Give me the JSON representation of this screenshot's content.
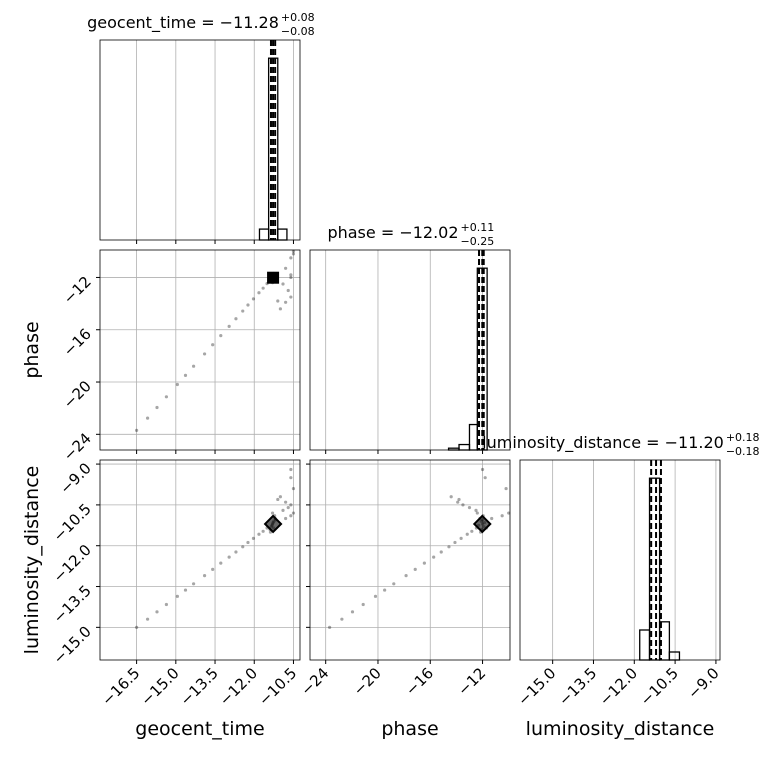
{
  "chart_data": {
    "type": "corner",
    "parameters": [
      {
        "label": "geocent_time",
        "title": "geocent_time = −11.28",
        "title_upper": "+0.08",
        "title_lower": "−0.08",
        "lim": [
          -17.9,
          -10.25
        ],
        "ticks": [
          {
            "value": -16.5,
            "label": "−16.5"
          },
          {
            "value": -15,
            "label": "−15.0"
          },
          {
            "value": -13.5,
            "label": "−13.5"
          },
          {
            "value": -12,
            "label": "−12.0"
          },
          {
            "value": -10.5,
            "label": "−10.5"
          }
        ],
        "bins": [
          -11.8,
          -11.45,
          -11.1,
          -10.75
        ],
        "counts": [
          0.06,
          1.0,
          0.06
        ],
        "hist_ylim": [
          0,
          1.1
        ],
        "quantiles": [
          -11.36,
          -11.28,
          -11.2
        ]
      },
      {
        "label": "phase",
        "title": "phase = −12.02",
        "title_upper": "+0.11",
        "title_lower": "−0.25",
        "lim": [
          -25.2,
          -9.9
        ],
        "ticks": [
          {
            "value": -24,
            "label": "−24"
          },
          {
            "value": -20,
            "label": "−20"
          },
          {
            "value": -16,
            "label": "−16"
          },
          {
            "value": -12,
            "label": "−12"
          }
        ],
        "bins": [
          -14.6,
          -13.8,
          -13.0,
          -12.4,
          -11.65
        ],
        "counts": [
          0.01,
          0.03,
          0.14,
          1.0
        ],
        "hist_ylim": [
          0,
          1.1
        ],
        "quantiles": [
          -12.27,
          -12.02,
          -11.91
        ]
      },
      {
        "label": "luminosity_distance",
        "title": "luminosity_distance = −11.20",
        "title_upper": "+0.18",
        "title_lower": "−0.18",
        "lim": [
          -16.2,
          -8.85
        ],
        "ticks": [
          {
            "value": -15,
            "label": "−15.0"
          },
          {
            "value": -13.5,
            "label": "−13.5"
          },
          {
            "value": -12,
            "label": "−12.0"
          },
          {
            "value": -10.5,
            "label": "−10.5"
          },
          {
            "value": -9,
            "label": "−9.0"
          }
        ],
        "bins": [
          -11.8,
          -11.44,
          -11.07,
          -10.71,
          -10.34
        ],
        "counts": [
          0.165,
          1.0,
          0.21,
          0.044
        ],
        "hist_ylim": [
          0,
          1.1
        ],
        "quantiles": [
          -11.38,
          -11.2,
          -11.02
        ]
      }
    ],
    "samples": [
      [
        -16.5,
        -23.7,
        -15.0
      ],
      [
        -16.08,
        -22.76,
        -14.7
      ],
      [
        -15.72,
        -21.95,
        -14.43
      ],
      [
        -15.36,
        -21.13,
        -14.16
      ],
      [
        -14.94,
        -20.19,
        -13.86
      ],
      [
        -14.63,
        -19.49,
        -13.63
      ],
      [
        -14.32,
        -18.79,
        -13.4
      ],
      [
        -13.9,
        -17.85,
        -13.1
      ],
      [
        -13.59,
        -17.15,
        -12.87
      ],
      [
        -13.28,
        -16.45,
        -12.64
      ],
      [
        -12.96,
        -15.74,
        -12.42
      ],
      [
        -12.7,
        -15.16,
        -12.23
      ],
      [
        -12.44,
        -14.57,
        -12.04
      ],
      [
        -12.24,
        -14.11,
        -11.88
      ],
      [
        -12.03,
        -13.64,
        -11.73
      ],
      [
        -11.82,
        -13.17,
        -11.58
      ],
      [
        -11.66,
        -12.82,
        -11.47
      ],
      [
        -11.51,
        -12.47,
        -11.35
      ],
      [
        -11.3,
        -12.0,
        -11.2
      ],
      [
        -11.25,
        -12.1,
        -11.1
      ],
      [
        -11.35,
        -11.9,
        -11.3
      ],
      [
        -11.2,
        -12.2,
        -11.0
      ],
      [
        -11.4,
        -12.05,
        -11.4
      ],
      [
        -11.28,
        -11.85,
        -11.15
      ],
      [
        -11.32,
        -12.3,
        -11.25
      ],
      [
        -11.22,
        -11.95,
        -10.9
      ],
      [
        -11.38,
        -12.15,
        -11.5
      ],
      [
        -11.18,
        -12.0,
        -11.05
      ],
      [
        -11.3,
        -12.4,
        -10.8
      ],
      [
        -11.26,
        -11.7,
        -11.35
      ],
      [
        -10.9,
        -12.5,
        -10.7
      ],
      [
        -10.7,
        -13.0,
        -10.6
      ],
      [
        -10.6,
        -13.5,
        -10.5
      ],
      [
        -10.8,
        -13.9,
        -10.4
      ],
      [
        -11.1,
        -13.8,
        -10.3
      ],
      [
        -10.6,
        -10.5,
        -10.9
      ],
      [
        -10.5,
        -10.0,
        -10.8
      ],
      [
        -10.8,
        -11.3,
        -11.0
      ],
      [
        -10.6,
        -11.8,
        -9.5
      ],
      [
        -11.0,
        -14.4,
        -10.2
      ],
      [
        -10.5,
        -10.2,
        -9.9
      ],
      [
        -10.6,
        -12.0,
        -9.2
      ]
    ]
  }
}
